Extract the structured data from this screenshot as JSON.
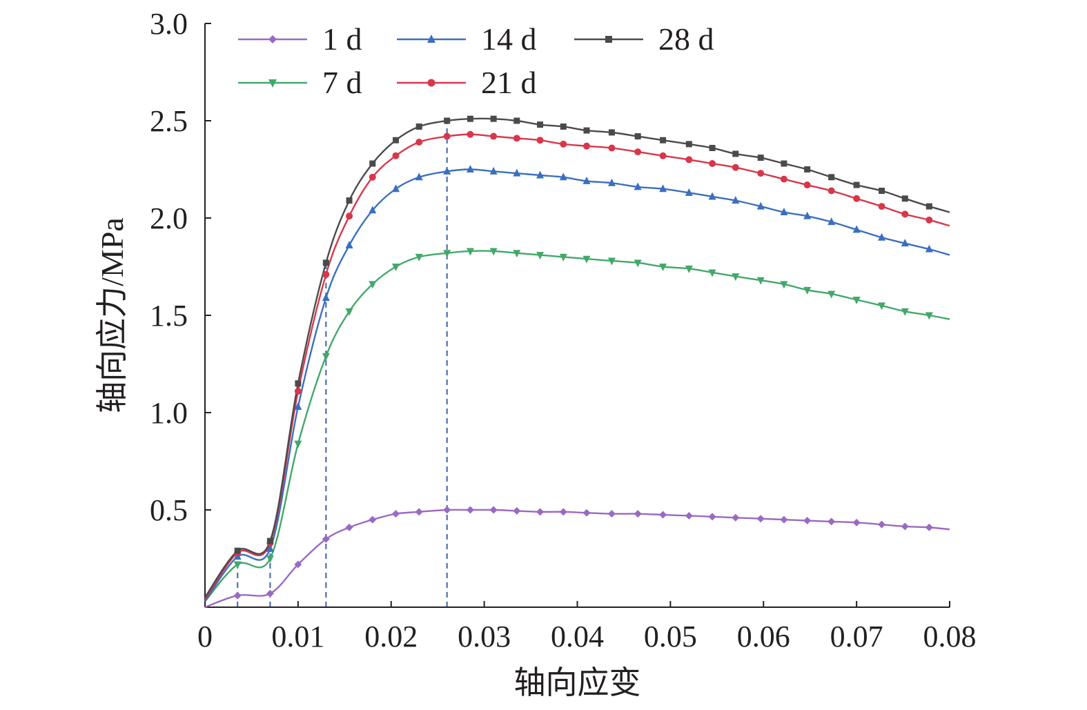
{
  "chart_data": {
    "type": "line",
    "xlabel": "轴向应变",
    "ylabel": "轴向应力/MPa",
    "xlim": [
      0,
      0.08
    ],
    "ylim": [
      0,
      3.0
    ],
    "x_ticks": [
      "0",
      "0.01",
      "0.02",
      "0.03",
      "0.04",
      "0.05",
      "0.06",
      "0.07",
      "0.08"
    ],
    "y_ticks": [
      "0.5",
      "1.0",
      "1.5",
      "2.0",
      "2.5",
      "3.0"
    ],
    "grid": false,
    "legend_position": "top",
    "reference_lines_x": [
      0.0035,
      0.007,
      0.013,
      0.026
    ],
    "reference_line_color": "#4a6fb5",
    "x": [
      0,
      0.0035,
      0.007,
      0.01,
      0.013,
      0.0155,
      0.018,
      0.0205,
      0.023,
      0.026,
      0.0285,
      0.031,
      0.0335,
      0.036,
      0.0385,
      0.041,
      0.0437,
      0.0465,
      0.0492,
      0.052,
      0.0545,
      0.057,
      0.0597,
      0.0622,
      0.0647,
      0.0673,
      0.07,
      0.0727,
      0.0752,
      0.0778,
      0.08
    ],
    "series": [
      {
        "name": "1 d",
        "color": "#9a69c4",
        "marker": "diamond",
        "values": [
          0.0,
          0.06,
          0.07,
          0.22,
          0.35,
          0.41,
          0.45,
          0.48,
          0.49,
          0.5,
          0.5,
          0.5,
          0.495,
          0.49,
          0.49,
          0.485,
          0.48,
          0.48,
          0.475,
          0.47,
          0.465,
          0.46,
          0.455,
          0.45,
          0.445,
          0.44,
          0.435,
          0.425,
          0.415,
          0.41,
          0.4
        ]
      },
      {
        "name": "7 d",
        "color": "#42a86a",
        "marker": "triangle-down",
        "values": [
          0.03,
          0.22,
          0.25,
          0.84,
          1.29,
          1.52,
          1.66,
          1.75,
          1.8,
          1.82,
          1.83,
          1.83,
          1.82,
          1.81,
          1.8,
          1.79,
          1.78,
          1.77,
          1.75,
          1.74,
          1.72,
          1.7,
          1.68,
          1.66,
          1.63,
          1.61,
          1.58,
          1.55,
          1.52,
          1.5,
          1.48
        ]
      },
      {
        "name": "14 d",
        "color": "#3a6fc0",
        "marker": "triangle-up",
        "values": [
          0.03,
          0.26,
          0.3,
          1.03,
          1.59,
          1.86,
          2.04,
          2.15,
          2.21,
          2.24,
          2.25,
          2.24,
          2.23,
          2.22,
          2.21,
          2.19,
          2.18,
          2.16,
          2.15,
          2.13,
          2.11,
          2.09,
          2.06,
          2.03,
          2.01,
          1.98,
          1.94,
          1.9,
          1.87,
          1.84,
          1.81
        ]
      },
      {
        "name": "21 d",
        "color": "#d9364a",
        "marker": "circle",
        "values": [
          0.04,
          0.28,
          0.33,
          1.11,
          1.71,
          2.01,
          2.21,
          2.32,
          2.39,
          2.42,
          2.43,
          2.42,
          2.41,
          2.4,
          2.38,
          2.37,
          2.36,
          2.34,
          2.32,
          2.3,
          2.28,
          2.26,
          2.23,
          2.2,
          2.17,
          2.14,
          2.1,
          2.06,
          2.02,
          1.99,
          1.96
        ]
      },
      {
        "name": "28 d",
        "color": "#4a4a4a",
        "marker": "square",
        "values": [
          0.05,
          0.29,
          0.34,
          1.15,
          1.77,
          2.09,
          2.28,
          2.4,
          2.47,
          2.5,
          2.51,
          2.51,
          2.5,
          2.48,
          2.47,
          2.45,
          2.44,
          2.42,
          2.4,
          2.38,
          2.36,
          2.33,
          2.31,
          2.28,
          2.25,
          2.21,
          2.17,
          2.14,
          2.1,
          2.06,
          2.03
        ]
      }
    ]
  }
}
